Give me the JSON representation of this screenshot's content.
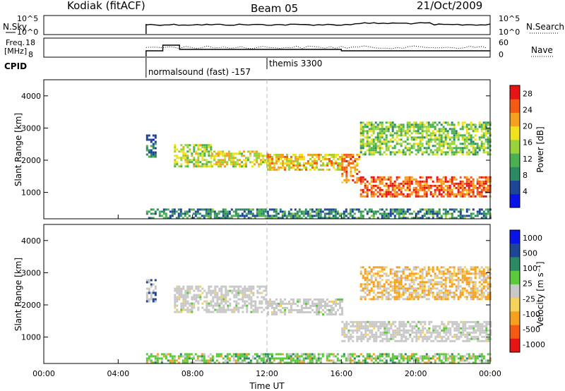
{
  "header": {
    "title": "Kodiak (fitACF)",
    "beam": "Beam 05",
    "date": "21/Oct/2009"
  },
  "top_panels": {
    "nsky": {
      "label": "N.Sky",
      "ticks": [
        "10^5",
        "10^0"
      ]
    },
    "nsearch": {
      "label": "N.Search",
      "ticks": [
        "10^5",
        "10^0"
      ]
    },
    "freq": {
      "label_lines": [
        "Freq.",
        "[MHz]"
      ],
      "ticks": [
        "18",
        "8"
      ]
    },
    "nave": {
      "label": "Nave",
      "ticks": [
        "60",
        "0"
      ]
    },
    "cpid": {
      "label": "CPID",
      "entries": [
        {
          "text": "normalsound (fast) -157",
          "start_hour": 5.5
        },
        {
          "text": "themis 3300",
          "start_hour": 12.0
        }
      ]
    }
  },
  "colors": {
    "power": [
      "#0a14e6",
      "#1e4696",
      "#2a8a64",
      "#4caf50",
      "#9ad23c",
      "#f0e21e",
      "#f5a01e",
      "#f55a14",
      "#e61414"
    ],
    "velocity": [
      "#0a14e6",
      "#1e4696",
      "#2a8a64",
      "#5cc83c",
      "#c8c8c8",
      "#f5d25a",
      "#f5a01e",
      "#f55a14",
      "#e61414"
    ]
  },
  "chart_data": [
    {
      "type": "heatmap",
      "panel": "power",
      "ylabel": "Slant Range [km]",
      "ylim": [
        180,
        4500
      ],
      "yticks": [
        "1000",
        "2000",
        "3000",
        "4000"
      ],
      "xlim": [
        0,
        24
      ],
      "xticks": [
        "00:00",
        "04:00",
        "08:00",
        "12:00",
        "16:00",
        "20:00",
        "00:00"
      ],
      "colorbar": {
        "label": "Power [dB]",
        "ticks": [
          "4",
          "8",
          "12",
          "16",
          "20",
          "24",
          "28"
        ],
        "range": [
          0,
          30
        ]
      },
      "bands": [
        {
          "x0": 5.5,
          "x1": 6.0,
          "y0": 2100,
          "y1": 2800,
          "value": 6
        },
        {
          "x0": 7.0,
          "x1": 9.0,
          "y0": 1800,
          "y1": 2500,
          "value": 16
        },
        {
          "x0": 9.0,
          "x1": 12.0,
          "y0": 1800,
          "y1": 2300,
          "value": 18
        },
        {
          "x0": 12.0,
          "x1": 16.0,
          "y0": 1700,
          "y1": 2200,
          "value": 20
        },
        {
          "x0": 16.0,
          "x1": 17.0,
          "y0": 1300,
          "y1": 2200,
          "value": 24
        },
        {
          "x0": 17.0,
          "x1": 24.0,
          "y0": 900,
          "y1": 1500,
          "value": 26
        },
        {
          "x0": 17.0,
          "x1": 24.0,
          "y0": 2200,
          "y1": 3200,
          "value": 14
        },
        {
          "x0": 5.5,
          "x1": 24.0,
          "y0": 180,
          "y1": 500,
          "value": 8
        }
      ]
    },
    {
      "type": "heatmap",
      "panel": "velocity",
      "ylabel": "Slant Range [km]",
      "ylim": [
        180,
        4500
      ],
      "yticks": [
        "1000",
        "2000",
        "3000",
        "4000"
      ],
      "xlim": [
        0,
        24
      ],
      "xticks": [
        "00:00",
        "04:00",
        "08:00",
        "12:00",
        "16:00",
        "20:00",
        "00:00"
      ],
      "xlabel": "Time UT",
      "colorbar": {
        "label": "Velocity [m s⁻¹]",
        "ticks": [
          "1000",
          "500",
          "100",
          "25",
          "-25",
          "-100",
          "-500",
          "-1000"
        ]
      },
      "bands": [
        {
          "x0": 5.5,
          "x1": 6.0,
          "y0": 2100,
          "y1": 2800,
          "value": -25
        },
        {
          "x0": 7.0,
          "x1": 12.0,
          "y0": 1800,
          "y1": 2600,
          "value": 0
        },
        {
          "x0": 12.0,
          "x1": 16.0,
          "y0": 1700,
          "y1": 2200,
          "value": 0
        },
        {
          "x0": 16.0,
          "x1": 24.0,
          "y0": 900,
          "y1": 1500,
          "value": 0
        },
        {
          "x0": 17.0,
          "x1": 24.0,
          "y0": 2200,
          "y1": 3200,
          "value": -150
        },
        {
          "x0": 5.5,
          "x1": 24.0,
          "y0": 180,
          "y1": 500,
          "value": 60
        }
      ]
    }
  ]
}
